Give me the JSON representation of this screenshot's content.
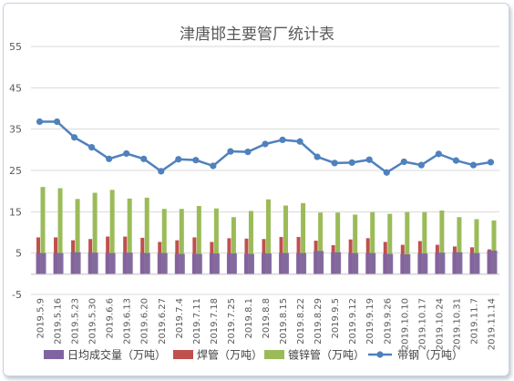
{
  "chart_data": {
    "type": "bar",
    "title": "津唐邯主要管厂统计表",
    "xlabel": "",
    "ylabel": "",
    "ylim": [
      -5,
      55
    ],
    "yticks": [
      -5,
      5,
      15,
      25,
      35,
      45,
      55
    ],
    "grid": "horizontal",
    "legend_position": "bottom",
    "categories": [
      "2019.5.9",
      "2019.5.16",
      "2019.5.23",
      "2019.5.30",
      "2019.6.6",
      "2019.6.13",
      "2019.6.20",
      "2019.6.27",
      "2019.7.4",
      "2019.7.11",
      "2019.7.18",
      "2019.7.25",
      "2019.8.1",
      "2019.8.8",
      "2019.8.15",
      "2019.8.22",
      "2019.8.29",
      "2019.9.5",
      "2019.9.12",
      "2019.9.19",
      "2019.9.26",
      "2019.10.10",
      "2019.10.17",
      "2019.10.24",
      "2019.10.31",
      "2019.11.7",
      "2019.11.14"
    ],
    "series": [
      {
        "name": "日均成交量（万吨）",
        "type": "bar",
        "color": "#8064a2",
        "values": [
          5.0,
          5.0,
          5.2,
          5.1,
          5.0,
          5.1,
          5.0,
          5.0,
          4.8,
          4.8,
          4.9,
          4.9,
          4.8,
          4.9,
          5.0,
          5.0,
          5.5,
          5.2,
          5.0,
          5.0,
          4.8,
          4.7,
          4.9,
          5.1,
          5.2,
          5.0,
          5.6
        ]
      },
      {
        "name": "焊管（万吨）",
        "type": "bar",
        "color": "#c0504d",
        "values": [
          8.8,
          8.8,
          8.1,
          8.4,
          9.0,
          9.0,
          8.7,
          7.7,
          8.1,
          8.8,
          7.7,
          8.6,
          8.5,
          8.4,
          8.9,
          8.9,
          8.0,
          6.9,
          8.3,
          8.6,
          7.7,
          7.0,
          7.9,
          7.0,
          6.6,
          6.4,
          5.9
        ]
      },
      {
        "name": "镀锌管（万吨）",
        "type": "bar",
        "color": "#9bbb59",
        "values": [
          21.0,
          20.7,
          18.1,
          19.6,
          20.3,
          18.2,
          18.4,
          15.7,
          15.7,
          16.4,
          15.8,
          13.7,
          15.2,
          18.0,
          16.5,
          17.1,
          14.8,
          14.8,
          14.3,
          14.9,
          14.5,
          14.9,
          14.9,
          15.3,
          13.7,
          13.2,
          12.9
        ]
      },
      {
        "name": "带钢（万吨）",
        "type": "line",
        "color": "#4f81bd",
        "values": [
          36.8,
          36.8,
          33.0,
          30.6,
          27.8,
          29.1,
          27.8,
          24.8,
          27.7,
          27.5,
          26.1,
          29.6,
          29.5,
          31.4,
          32.4,
          32.0,
          28.3,
          26.8,
          26.9,
          27.6,
          24.5,
          27.1,
          26.3,
          29.0,
          27.4,
          26.3,
          27.0
        ]
      }
    ]
  }
}
